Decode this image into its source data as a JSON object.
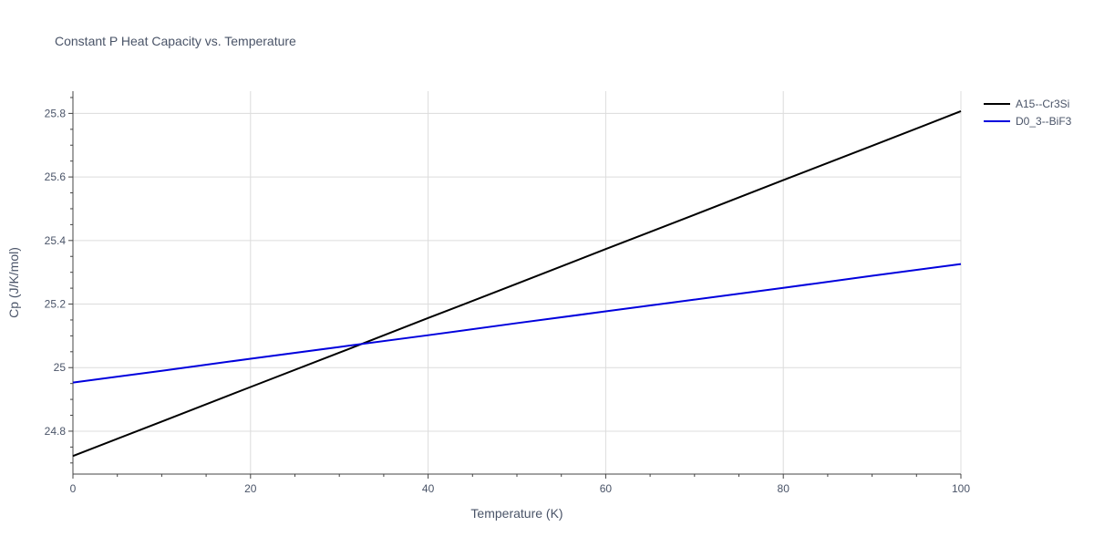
{
  "chart_data": {
    "type": "line",
    "title": "Constant P Heat Capacity vs. Temperature",
    "xlabel": "Temperature (K)",
    "ylabel": "Cp (J/K/mol)",
    "xlim": [
      0,
      100
    ],
    "ylim": [
      24.665,
      25.87
    ],
    "x_ticks": [
      0,
      20,
      40,
      60,
      80,
      100
    ],
    "x_tick_labels": [
      "0",
      "20",
      "40",
      "60",
      "80",
      "100"
    ],
    "y_ticks": [
      24.8,
      25.0,
      25.2,
      25.4,
      25.6,
      25.8
    ],
    "y_tick_labels": [
      "24.8",
      "25",
      "25.2",
      "25.4",
      "25.6",
      "25.8"
    ],
    "grid": true,
    "legend_position": "top-right",
    "series": [
      {
        "name": "A15--Cr3Si",
        "color": "#000000",
        "x": [
          0,
          10,
          20,
          30,
          40,
          50,
          60,
          70,
          80,
          90,
          100
        ],
        "y": [
          24.722,
          24.83,
          24.939,
          25.047,
          25.156,
          25.264,
          25.373,
          25.481,
          25.59,
          25.698,
          25.807
        ]
      },
      {
        "name": "D0_3--BiF3",
        "color": "#0000dd",
        "x": [
          0,
          10,
          20,
          30,
          40,
          50,
          60,
          70,
          80,
          90,
          100
        ],
        "y": [
          24.953,
          24.99,
          25.028,
          25.065,
          25.102,
          25.14,
          25.177,
          25.214,
          25.251,
          25.289,
          25.326
        ]
      }
    ]
  }
}
